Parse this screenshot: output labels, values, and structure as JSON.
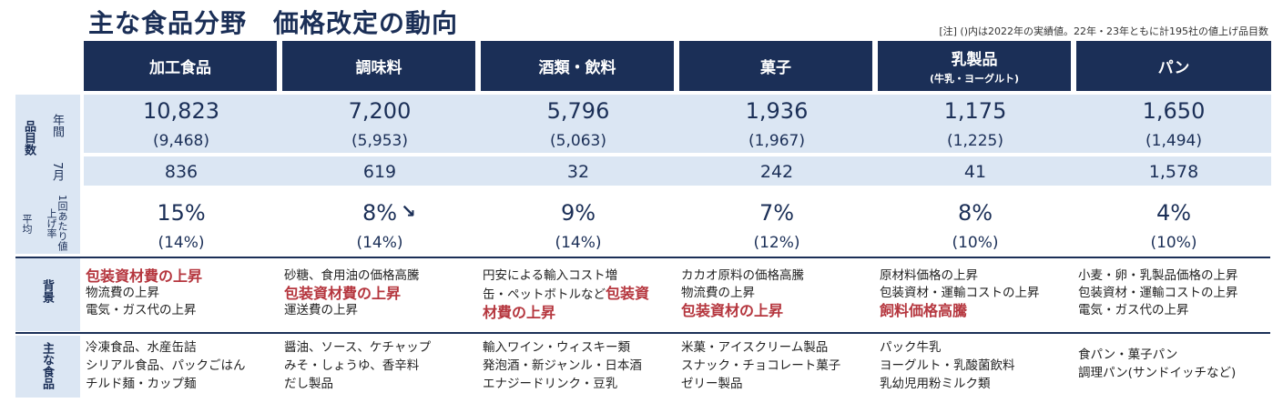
{
  "title": "主な食品分野　価格改定の動向",
  "note": "[注] ()内は2022年の実績値。22年・23年ともに計195社の値上げ品目数",
  "side_labels": {
    "hinmoku": "品目数",
    "nenkan": "年間",
    "shichigatsu": "7月",
    "neage": "1回あたり値上げ率",
    "heikin": "平均",
    "haikei": "背景",
    "omona": "主な食品"
  },
  "categories": [
    {
      "name": "加工食品",
      "sub": "",
      "annual": "10,823",
      "annual_prev": "(9,468)",
      "july": "836",
      "rate": "15%",
      "rate_prev": "(14%)",
      "background": [
        {
          "text": "包装資材費の上昇",
          "red": true
        },
        {
          "text": "物流費の上昇",
          "red": false
        },
        {
          "text": "電気・ガス代の上昇",
          "red": false
        }
      ],
      "foods": [
        "冷凍食品、水産缶詰",
        "シリアル食品、パックごはん",
        "チルド麺・カップ麺"
      ]
    },
    {
      "name": "調味料",
      "sub": "",
      "annual": "7,200",
      "annual_prev": "(5,953)",
      "july": "619",
      "rate": "8%",
      "rate_prev": "(14%)",
      "background": [
        {
          "text": "砂糖、食用油の価格高騰",
          "red": false
        },
        {
          "text": "包装資材費の上昇",
          "red": true
        },
        {
          "text": "運送費の上昇",
          "red": false
        }
      ],
      "foods": [
        "醤油、ソース、ケチャップ",
        "みそ・しょうゆ、香辛料",
        "だし製品"
      ]
    },
    {
      "name": "酒類・飲料",
      "sub": "",
      "annual": "5,796",
      "annual_prev": "(5,063)",
      "july": "32",
      "rate": "9%",
      "rate_prev": "(14%)",
      "background": [
        {
          "text": "円安による輸入コスト増",
          "red": false
        },
        {
          "text": "缶・ペットボトルなど",
          "red": false,
          "tail": "包装資"
        },
        {
          "text": "材費の上昇",
          "red": true
        }
      ],
      "foods": [
        "輸入ワイン・ウィスキー類",
        "発泡酒・新ジャンル・日本酒",
        "エナジードリンク・豆乳"
      ]
    },
    {
      "name": "菓子",
      "sub": "",
      "annual": "1,936",
      "annual_prev": "(1,967)",
      "july": "242",
      "rate": "7%",
      "rate_prev": "(12%)",
      "background": [
        {
          "text": "カカオ原料の価格高騰",
          "red": false
        },
        {
          "text": "物流費の上昇",
          "red": false
        },
        {
          "text": "包装資材の上昇",
          "red": true
        }
      ],
      "foods": [
        "米菓・アイスクリーム製品",
        "スナック・チョコレート菓子",
        "ゼリー製品"
      ]
    },
    {
      "name": "乳製品",
      "sub": "(牛乳・ヨーグルト)",
      "annual": "1,175",
      "annual_prev": "(1,225)",
      "july": "41",
      "rate": "8%",
      "rate_prev": "(10%)",
      "background": [
        {
          "text": "原材料価格の上昇",
          "red": false
        },
        {
          "text": "包装資材・運輸コストの上昇",
          "red": false
        },
        {
          "text": "飼料価格高騰",
          "red": true
        }
      ],
      "foods": [
        "パック牛乳",
        "ヨーグルト・乳酸菌飲料",
        "乳幼児用粉ミルク類"
      ]
    },
    {
      "name": "パン",
      "sub": "",
      "annual": "1,650",
      "annual_prev": "(1,494)",
      "july": "1,578",
      "rate": "4%",
      "rate_prev": "(10%)",
      "background": [
        {
          "text": "小麦・卵・乳製品価格の上昇",
          "red": false
        },
        {
          "text": "包装資材・運輸コストの上昇",
          "red": false
        },
        {
          "text": "電気・ガス代の上昇",
          "red": false
        }
      ],
      "foods": [
        "食パン・菓子パン",
        "調理パン(サンドイッチなど)"
      ]
    }
  ]
}
